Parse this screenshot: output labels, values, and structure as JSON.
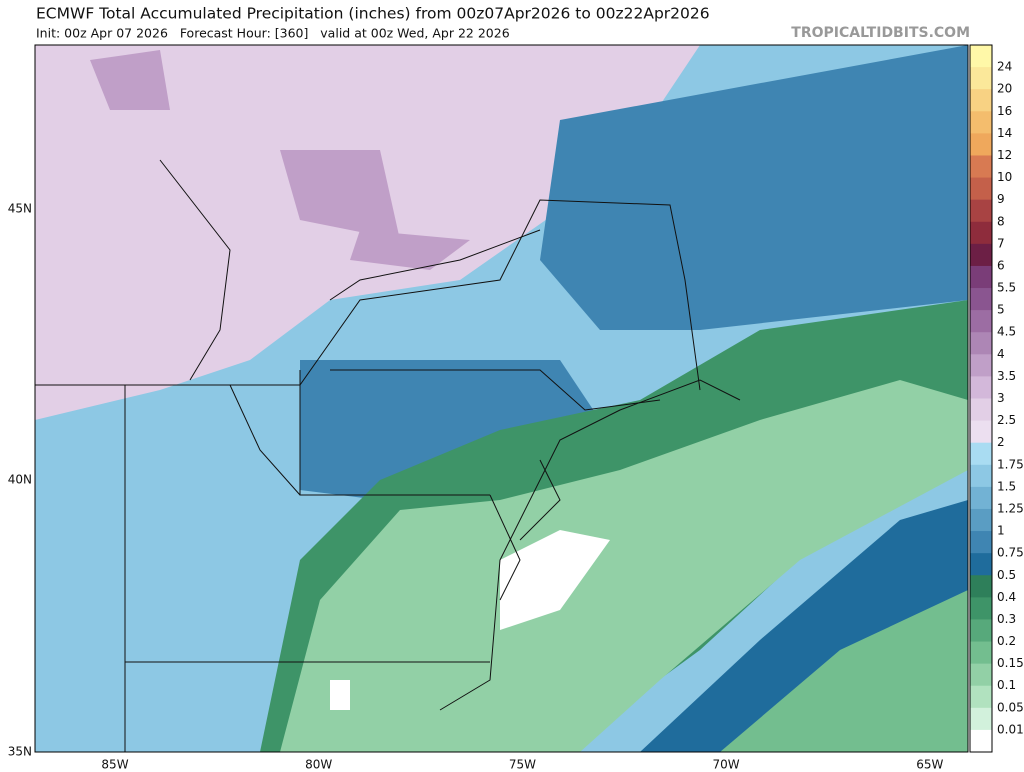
{
  "header": {
    "title": "ECMWF Total Accumulated Precipitation (inches) from 00z07Apr2026 to 00z22Apr2026",
    "subtitle": "Init: 00z Apr 07 2026   Forecast Hour: [360]   valid at 00z Wed, Apr 22 2026",
    "watermark": "TROPICALTIDBITS.COM"
  },
  "map": {
    "lat_labels": [
      "45N",
      "40N",
      "35N"
    ],
    "lon_labels": [
      "85W",
      "80W",
      "75W",
      "70W",
      "65W"
    ]
  },
  "legend": {
    "labels": [
      "24",
      "20",
      "16",
      "14",
      "12",
      "10",
      "9",
      "8",
      "7",
      "6",
      "5.5",
      "5",
      "4.5",
      "4",
      "3.5",
      "3",
      "2.5",
      "2",
      "1.75",
      "1.5",
      "1.25",
      "1",
      "0.75",
      "0.5",
      "0.4",
      "0.3",
      "0.2",
      "0.15",
      "0.1",
      "0.05",
      "0.01"
    ],
    "colors": [
      "#fff8a8",
      "#fbe89a",
      "#f8d283",
      "#f4bd6d",
      "#efa85c",
      "#d87a52",
      "#c4604a",
      "#a84343",
      "#8e2c3c",
      "#6c1f45",
      "#7a3d78",
      "#8a5590",
      "#9c6da3",
      "#ad86b5",
      "#c09fc8",
      "#d3b8da",
      "#e2cfe6",
      "#ecdff0",
      "#a9dcf2",
      "#8dc8e4",
      "#72b2d4",
      "#5a9dc3",
      "#3f85b2",
      "#1f6c9c",
      "#2e7f5a",
      "#3e9468",
      "#57a97b",
      "#73be8f",
      "#92d0a6",
      "#b1e2bf",
      "#d2f1dc",
      "#ffffff"
    ]
  }
}
